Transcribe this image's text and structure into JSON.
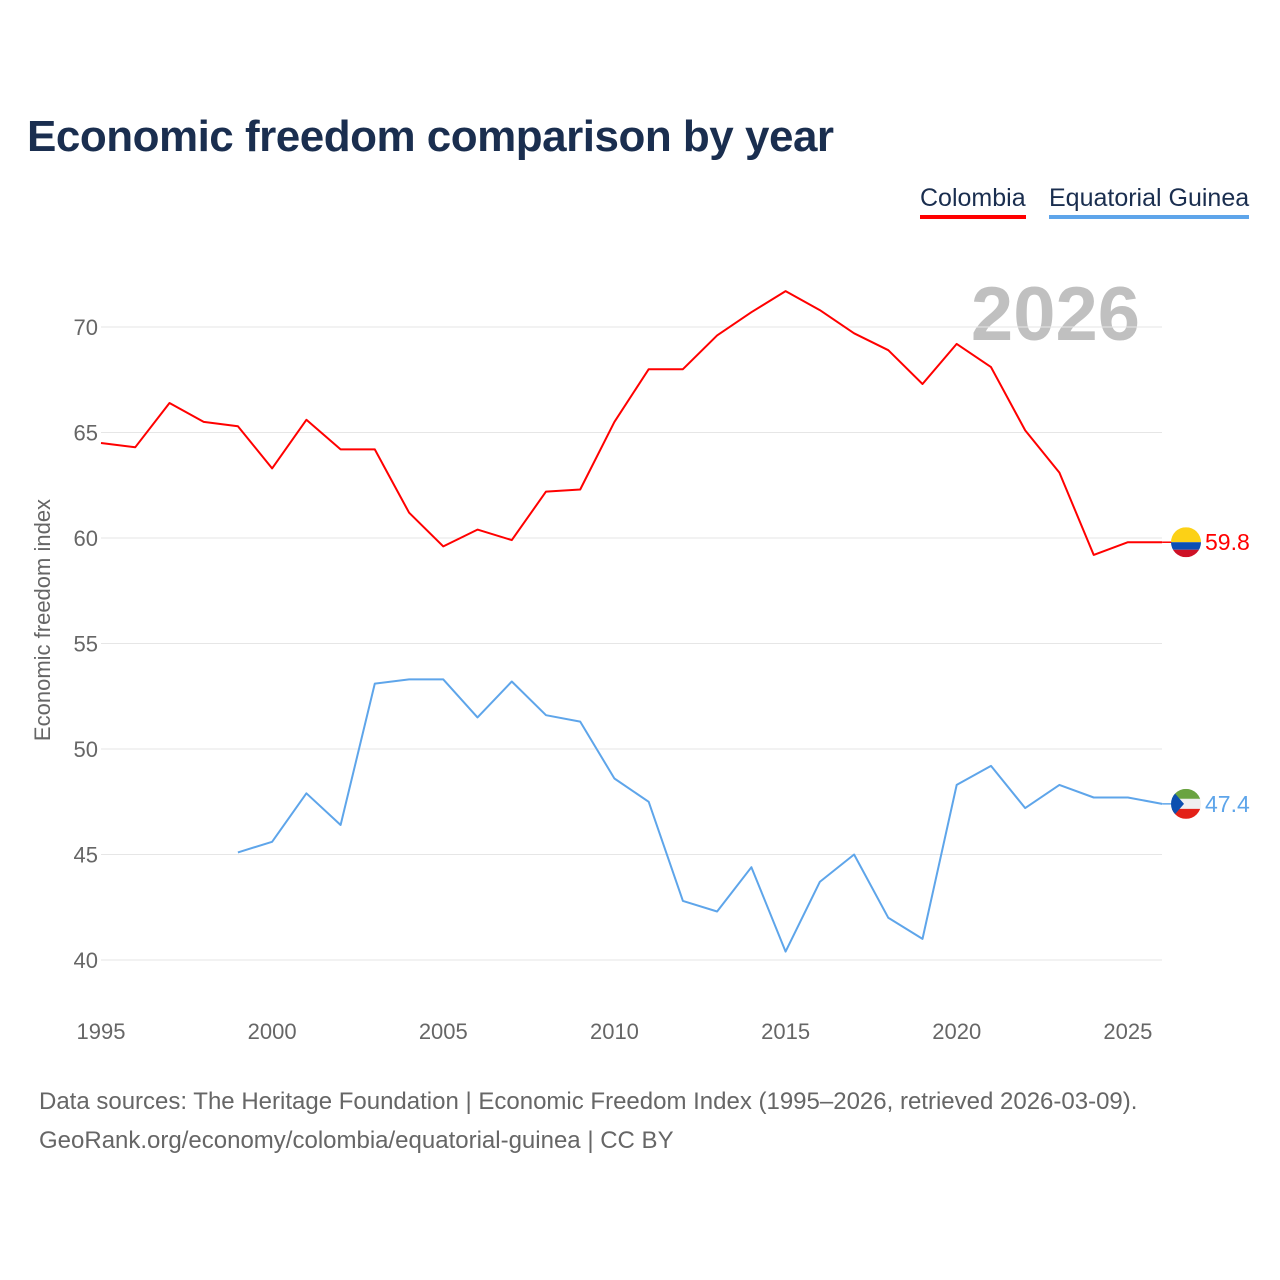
{
  "chart_data": {
    "type": "line",
    "title": "Economic freedom comparison by year",
    "xlabel": "",
    "ylabel": "Economic freedom index",
    "xlim": [
      1995,
      2026
    ],
    "ylim": [
      40,
      72
    ],
    "grid": true,
    "legend_placement": "top-right",
    "year_watermark": "2026",
    "x_ticks": [
      "1995",
      "2000",
      "2005",
      "2010",
      "2015",
      "2020",
      "2025"
    ],
    "y_ticks": [
      "40",
      "45",
      "50",
      "55",
      "60",
      "65",
      "70"
    ],
    "series": [
      {
        "name": "Colombia",
        "color": "#ff0000",
        "end_label": "59.8",
        "x": [
          1995,
          1996,
          1997,
          1998,
          1999,
          2000,
          2001,
          2002,
          2003,
          2004,
          2005,
          2006,
          2007,
          2008,
          2009,
          2010,
          2011,
          2012,
          2013,
          2014,
          2015,
          2016,
          2017,
          2018,
          2019,
          2020,
          2021,
          2022,
          2023,
          2024,
          2025,
          2026
        ],
        "values": [
          64.5,
          64.3,
          66.4,
          65.5,
          65.3,
          63.3,
          65.6,
          64.2,
          64.2,
          61.2,
          59.6,
          60.4,
          59.9,
          62.2,
          62.3,
          65.5,
          68.0,
          68.0,
          69.6,
          70.7,
          71.7,
          70.8,
          69.7,
          68.9,
          67.3,
          69.2,
          68.1,
          65.1,
          63.1,
          59.2,
          59.8,
          59.8
        ]
      },
      {
        "name": "Equatorial Guinea",
        "color": "#5ea5ea",
        "end_label": "47.4",
        "x": [
          1999,
          2000,
          2001,
          2002,
          2003,
          2004,
          2005,
          2006,
          2007,
          2008,
          2009,
          2010,
          2011,
          2012,
          2013,
          2014,
          2015,
          2016,
          2017,
          2018,
          2019,
          2020,
          2021,
          2022,
          2023,
          2024,
          2025,
          2026
        ],
        "values": [
          45.1,
          45.6,
          47.9,
          46.4,
          53.1,
          53.3,
          53.3,
          51.5,
          53.2,
          51.6,
          51.3,
          48.6,
          47.5,
          42.8,
          42.3,
          44.4,
          40.4,
          43.7,
          45.0,
          42.0,
          41.0,
          48.3,
          49.2,
          47.2,
          48.3,
          47.7,
          47.7,
          47.4
        ]
      }
    ]
  },
  "footer": {
    "line1": "Data sources: The Heritage Foundation | Economic Freedom Index (1995–2026, retrieved 2026-03-09).",
    "line2": "GeoRank.org/economy/colombia/equatorial-guinea | CC BY"
  }
}
